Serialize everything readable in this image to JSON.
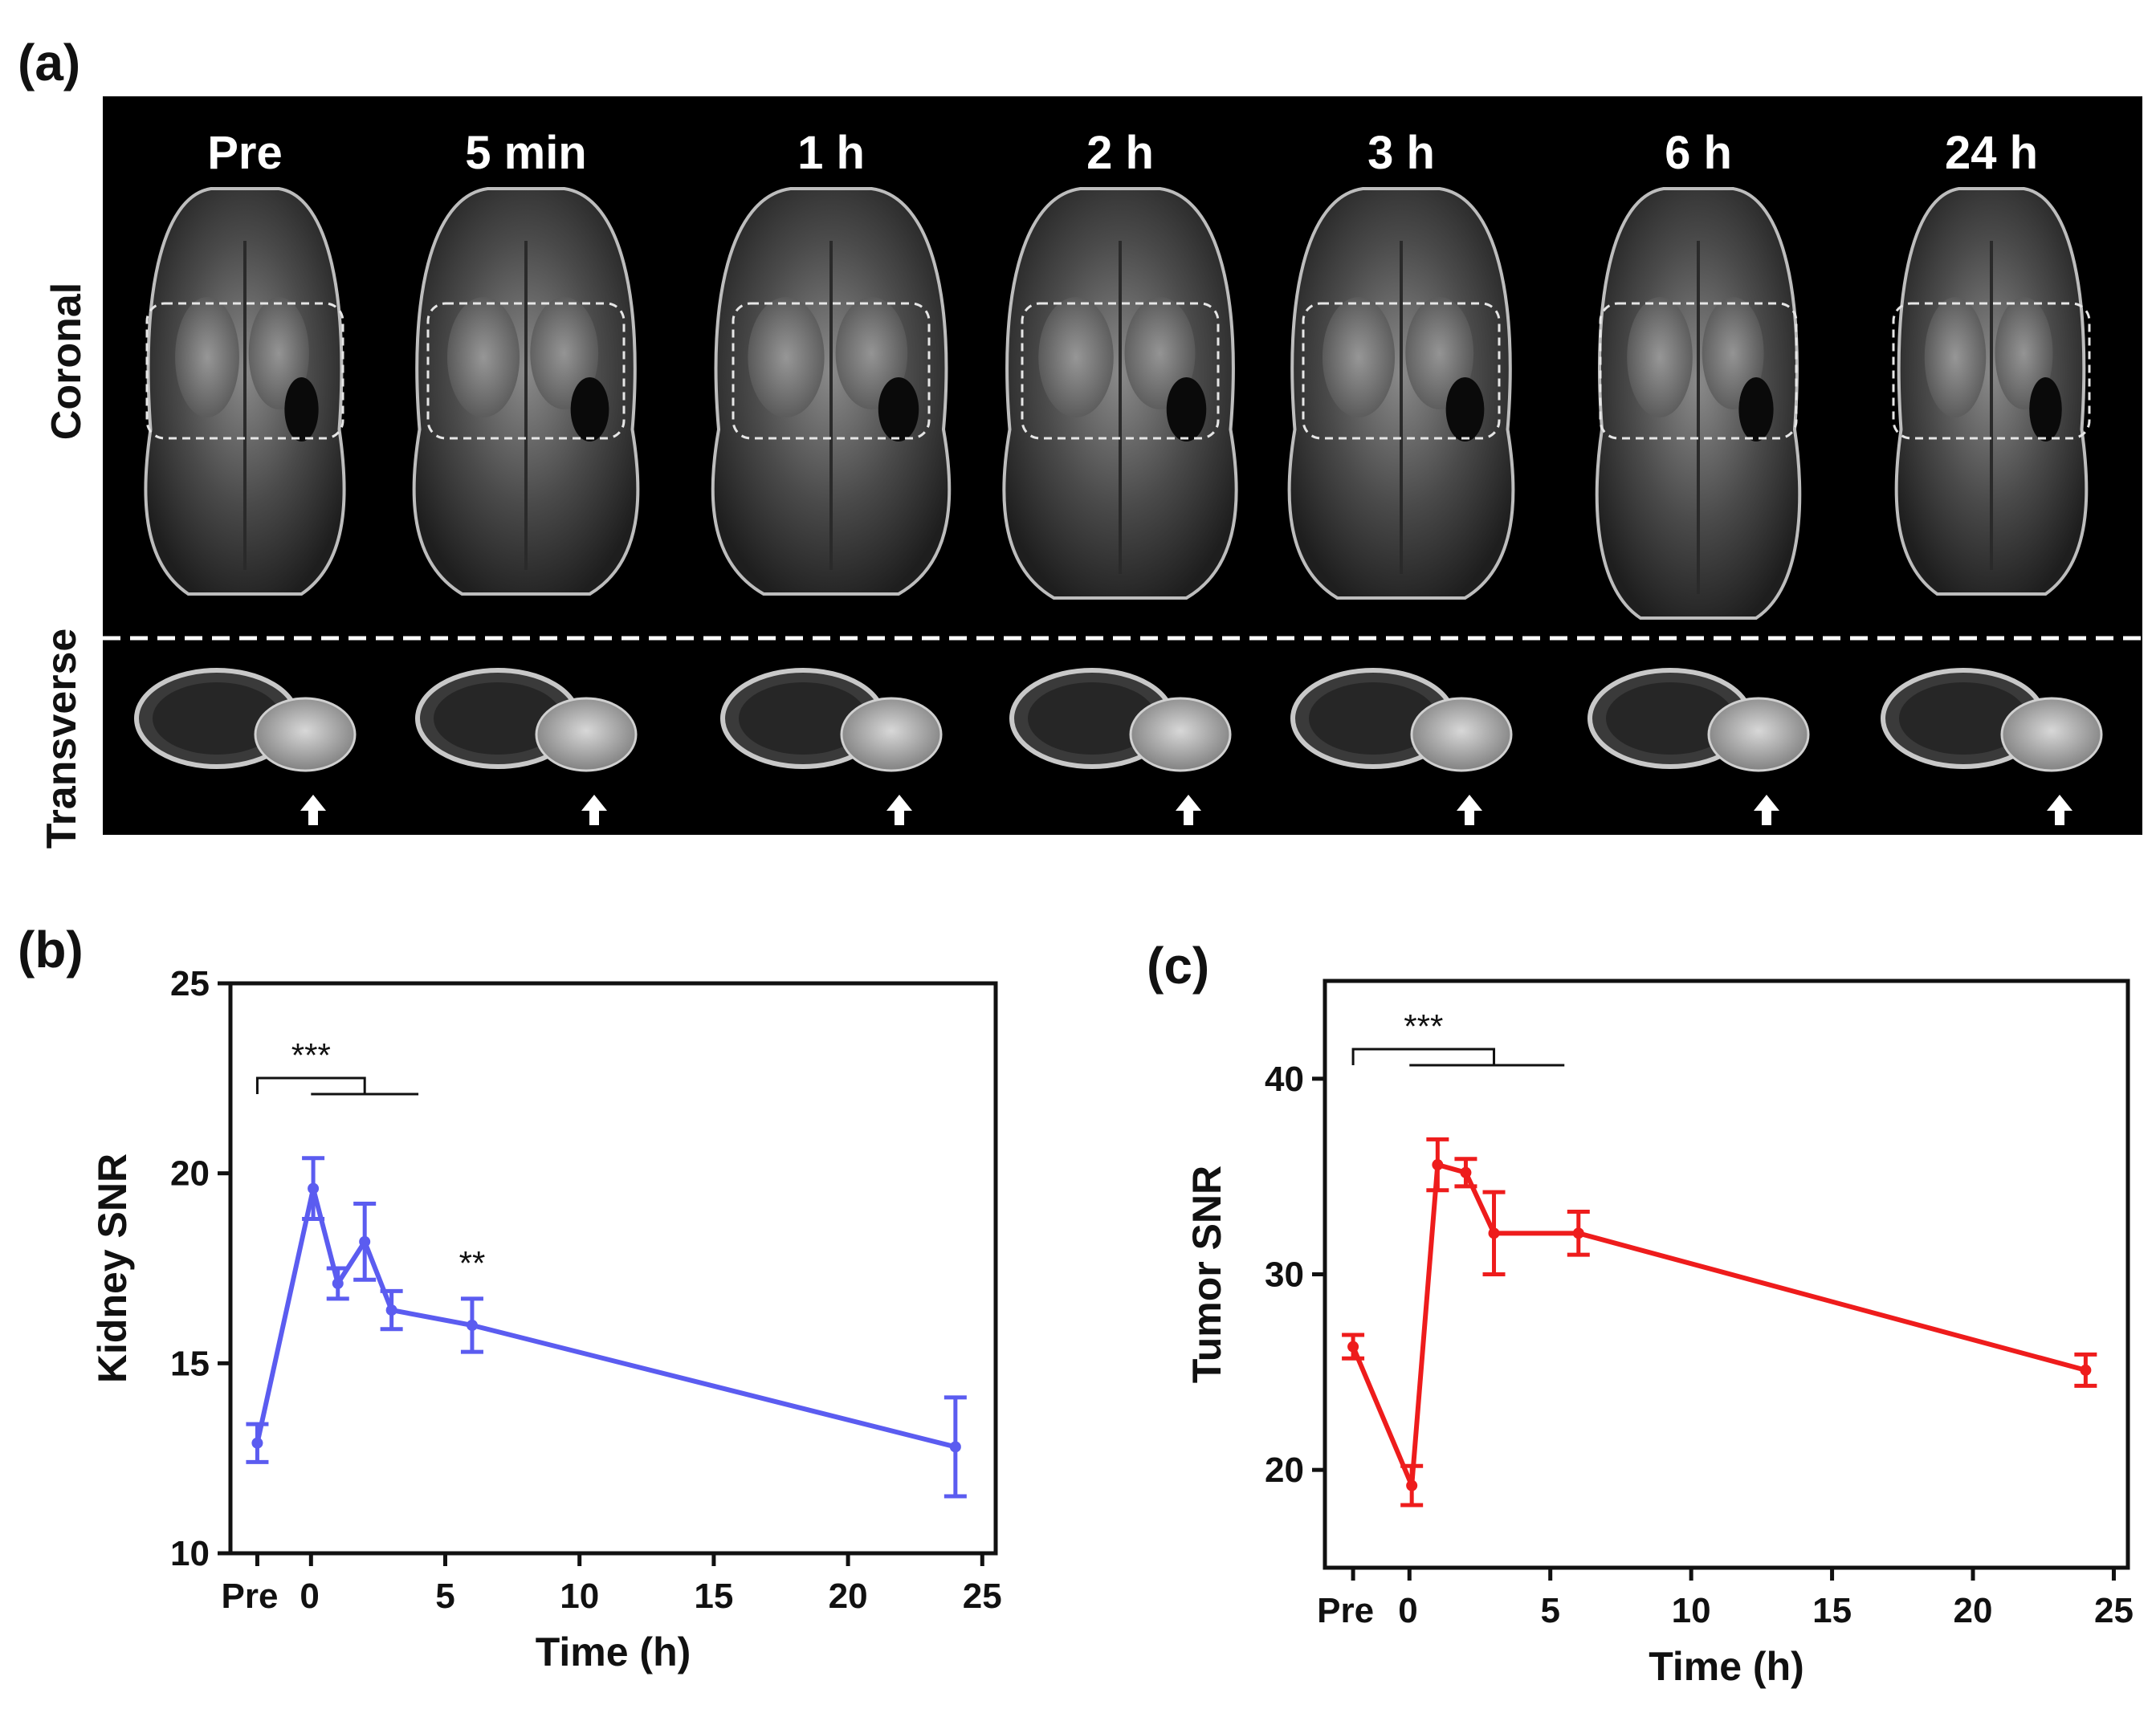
{
  "panel_a": {
    "letter": "(a)",
    "time_labels": [
      "Pre",
      "5 min",
      "1 h",
      "2 h",
      "3 h",
      "6 h",
      "24 h"
    ],
    "row_labels": {
      "coronal": "Coronal",
      "transverse": "Transverse"
    }
  },
  "chart_data": [
    {
      "panel": "(b)",
      "type": "line",
      "xlabel": "Time (h)",
      "ylabel": "Kidney SNR",
      "ylim": [
        10,
        25
      ],
      "xlim": [
        -3,
        25.5
      ],
      "yticks": [
        10,
        15,
        20,
        25
      ],
      "xticks": [
        {
          "value": -2,
          "label": "Pre"
        },
        {
          "value": 0,
          "label": "0"
        },
        {
          "value": 5,
          "label": "5"
        },
        {
          "value": 10,
          "label": "10"
        },
        {
          "value": 15,
          "label": "15"
        },
        {
          "value": 20,
          "label": "20"
        },
        {
          "value": 25,
          "label": "25"
        }
      ],
      "color": "#5b5cf0",
      "series": [
        {
          "name": "Kidney SNR",
          "x": [
            -2,
            0.083,
            1,
            2,
            3,
            6,
            24
          ],
          "y": [
            12.9,
            19.6,
            17.1,
            18.2,
            16.4,
            16.0,
            12.8
          ],
          "err": [
            0.5,
            0.8,
            0.4,
            1.0,
            0.5,
            0.7,
            1.3
          ]
        }
      ],
      "annotations": [
        {
          "text": "***",
          "type": "bracket",
          "from": -2,
          "to": 4,
          "split": 2
        },
        {
          "text": "**",
          "type": "label",
          "x": 6
        }
      ]
    },
    {
      "panel": "(c)",
      "type": "line",
      "xlabel": "Time (h)",
      "ylabel": "Tumor SNR",
      "ylim": [
        15,
        45
      ],
      "xlim": [
        -3,
        25.5
      ],
      "yticks": [
        20,
        30,
        40
      ],
      "xticks": [
        {
          "value": -2,
          "label": "Pre"
        },
        {
          "value": 0,
          "label": "0"
        },
        {
          "value": 5,
          "label": "5"
        },
        {
          "value": 10,
          "label": "10"
        },
        {
          "value": 15,
          "label": "15"
        },
        {
          "value": 20,
          "label": "20"
        },
        {
          "value": 25,
          "label": "25"
        }
      ],
      "color": "#ee1c1c",
      "series": [
        {
          "name": "Tumor SNR",
          "x": [
            -2,
            0.083,
            1,
            2,
            3,
            6,
            24
          ],
          "y": [
            26.3,
            19.2,
            35.6,
            35.2,
            32.1,
            32.1,
            25.1
          ],
          "err": [
            0.6,
            1.0,
            1.3,
            0.7,
            2.1,
            1.1,
            0.8
          ]
        }
      ],
      "annotations": [
        {
          "text": "***",
          "type": "bracket",
          "from": -2,
          "to": 5.5,
          "split": 3
        }
      ]
    }
  ]
}
